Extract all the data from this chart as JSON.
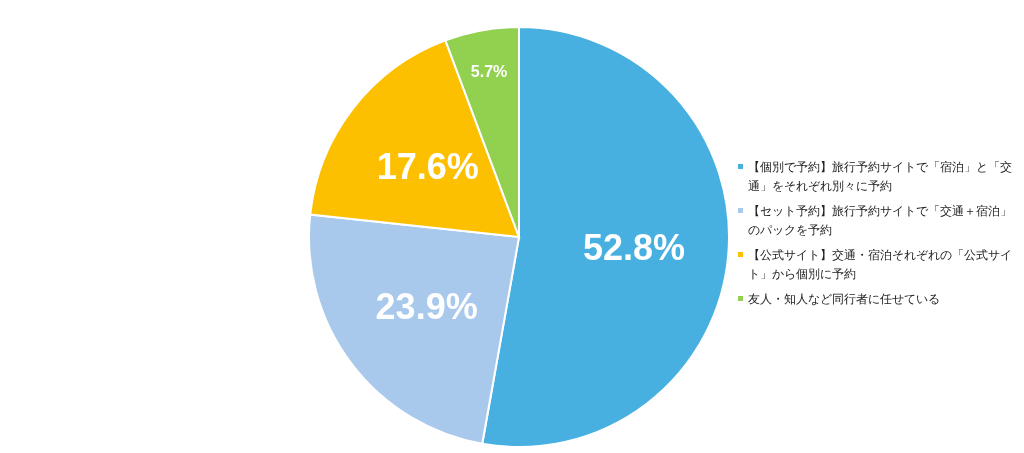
{
  "chart_data": {
    "type": "pie",
    "categories": [
      "【個別で予約】旅行予約サイトで「宿泊」と「交通」をそれぞれ別々に予約",
      "【セット予約】旅行予約サイトで「交通＋宿泊」のパックを予約",
      "【公式サイト】交通・宿泊それぞれの「公式サイト」から個別に予約",
      "友人・知人など同行者に任せている"
    ],
    "values": [
      52.8,
      23.9,
      17.6,
      5.7
    ],
    "colors": [
      "#48b0e0",
      "#a8c8ec",
      "#fdc000",
      "#92d050"
    ],
    "value_labels": [
      "52.8%",
      "23.9%",
      "17.6%",
      "5.7%"
    ],
    "legend": "right"
  }
}
